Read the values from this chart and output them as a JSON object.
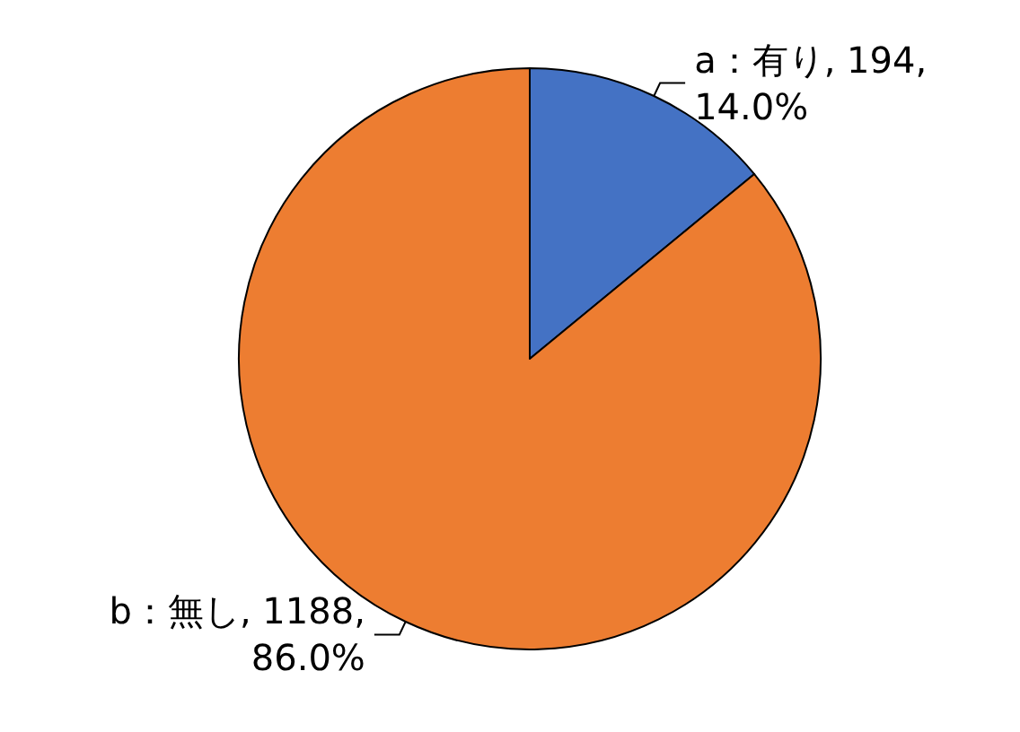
{
  "chart_data": {
    "type": "pie",
    "categories": [
      "a：有り",
      "b：無し"
    ],
    "values": [
      194,
      1188
    ],
    "colors": [
      "#4472c4",
      "#ed7d31"
    ],
    "value_labels": [
      "194, 14.0%",
      "1188, 86.0%"
    ],
    "legend": false
  }
}
